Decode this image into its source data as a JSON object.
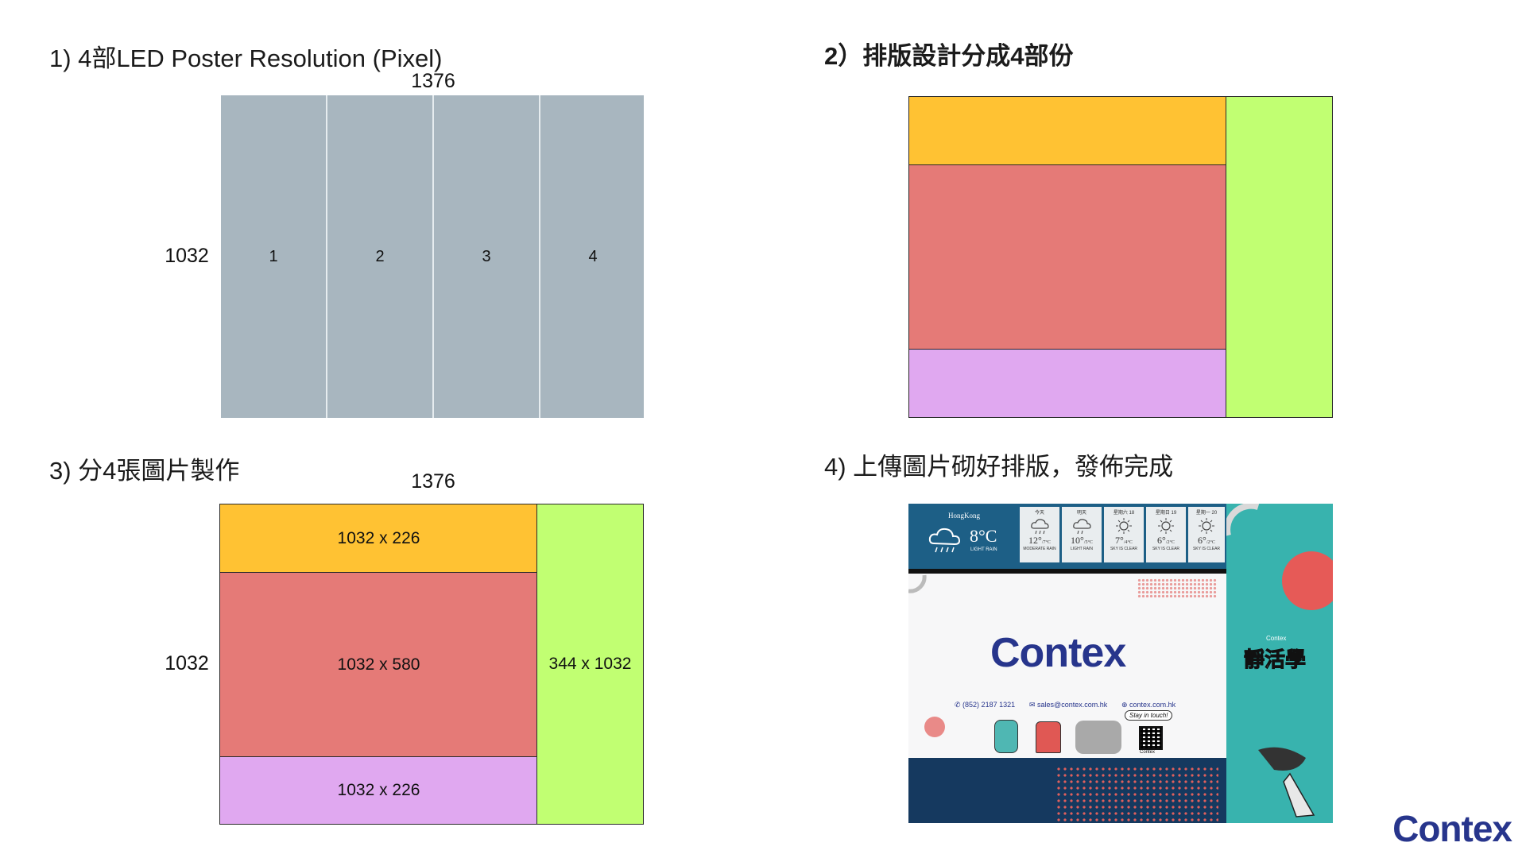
{
  "panel1": {
    "title": "1) 4部LED Poster Resolution (Pixel)",
    "width_label": "1376",
    "height_label": "1032",
    "columns": [
      "1",
      "2",
      "3",
      "4"
    ],
    "color": "#a8b6bf"
  },
  "panel2": {
    "title": "2）排版設計分成4部份",
    "colors": {
      "top": "#ffc233",
      "middle": "#e57a77",
      "bottom": "#e0a8f0",
      "side": "#c1ff72"
    }
  },
  "panel3": {
    "title": "3) 分4張圖片製作",
    "width_label": "1376",
    "height_label": "1032",
    "blocks": {
      "top": "1032 x 226",
      "middle": "1032 x 580",
      "bottom": "1032 x 226",
      "side": "344 x 1032"
    }
  },
  "panel4": {
    "title": "4) 上傳圖片砌好排版，發佈完成",
    "weather": {
      "city": "HongKong",
      "temp": "8°C",
      "condition": "LIGHT RAIN",
      "days": [
        {
          "day": "今天",
          "temp": "12°",
          "range": "/7°C",
          "cond": "MODERATE RAIN",
          "icon": "rain-cloud-icon"
        },
        {
          "day": "明天",
          "temp": "10°",
          "range": "/5°C",
          "cond": "LIGHT RAIN",
          "icon": "rain-cloud-icon"
        },
        {
          "day": "星期六 18",
          "temp": "7°",
          "range": "/4°C",
          "cond": "SKY IS CLEAR",
          "icon": "sun-icon"
        },
        {
          "day": "星期日 19",
          "temp": "6°",
          "range": "/2°C",
          "cond": "SKY IS CLEAR",
          "icon": "sun-icon"
        },
        {
          "day": "星期一 20",
          "temp": "6°",
          "range": "/2°C",
          "cond": "SKY IS CLEAR",
          "icon": "sun-icon"
        }
      ]
    },
    "logo": "Contex",
    "phone": "(852) 2187 1321",
    "email": "sales@contex.com.hk",
    "web": "contex.com.hk",
    "bubble": "Stay in touch!",
    "qr_label": "Contex",
    "side_brand": "Contex",
    "side_title": "靜活學"
  },
  "brand_logo": "Contex"
}
